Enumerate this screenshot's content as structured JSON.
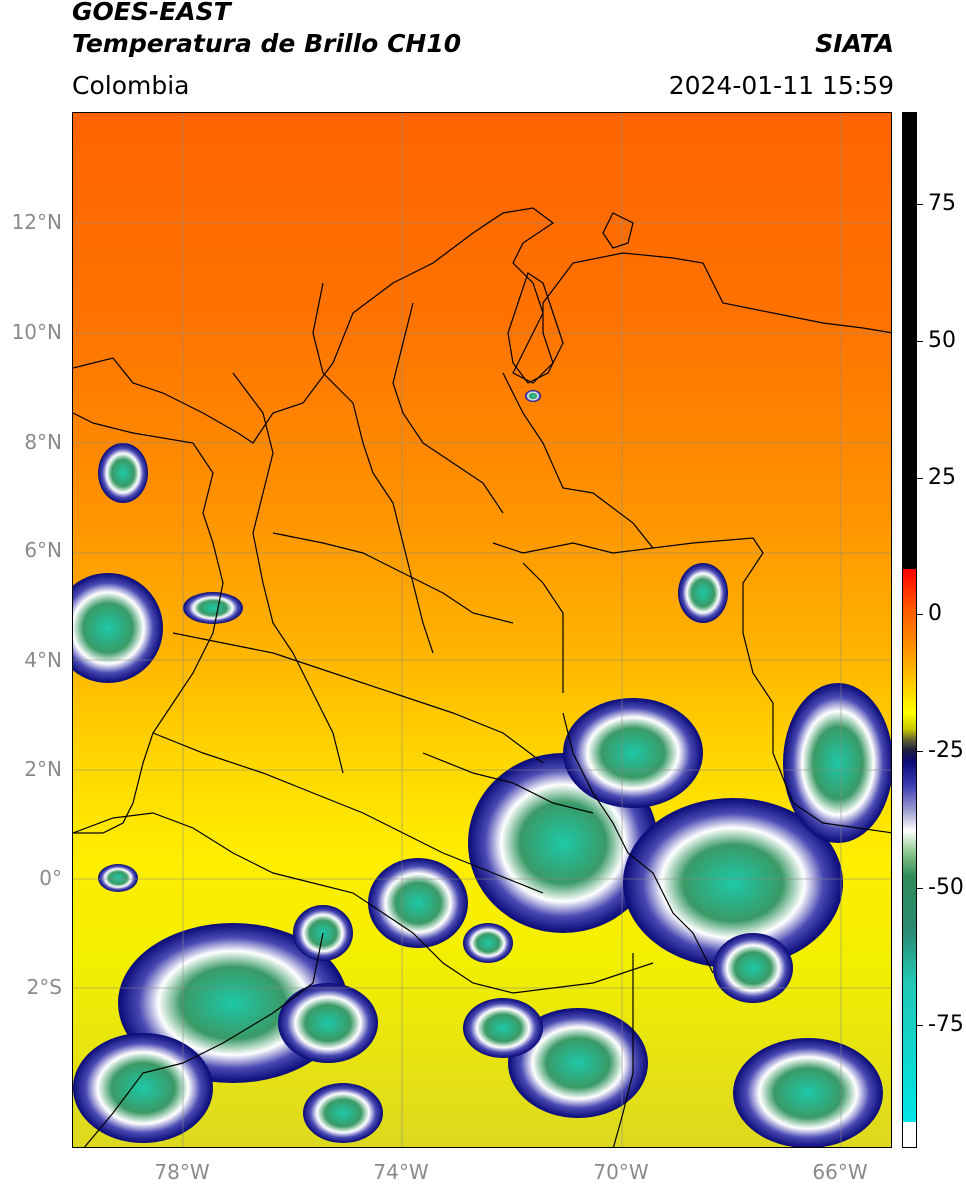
{
  "header": {
    "satellite": "GOES-EAST",
    "product": "Temperatura de Brillo CH10",
    "brand": "SIATA",
    "region": "Colombia",
    "timestamp": "2024-01-11 15:59"
  },
  "axes": {
    "lat_labels": [
      "12°N",
      "10°N",
      "8°N",
      "6°N",
      "4°N",
      "2°N",
      "0°",
      "2°S"
    ],
    "lon_labels": [
      "78°W",
      "74°W",
      "70°W",
      "66°W"
    ]
  },
  "colorbar": {
    "tick_labels": [
      "75",
      "50",
      "25",
      "0",
      "-25",
      "-50",
      "-75"
    ],
    "range": [
      -95,
      90
    ],
    "colors": {
      "warm_top": "#000000",
      "zero": "#ff5a00",
      "mid": "#ffff00",
      "cold_blue": "#0a0a78",
      "white": "#ffffff",
      "green": "#2e8b57",
      "cyan": "#00e5e5"
    }
  }
}
